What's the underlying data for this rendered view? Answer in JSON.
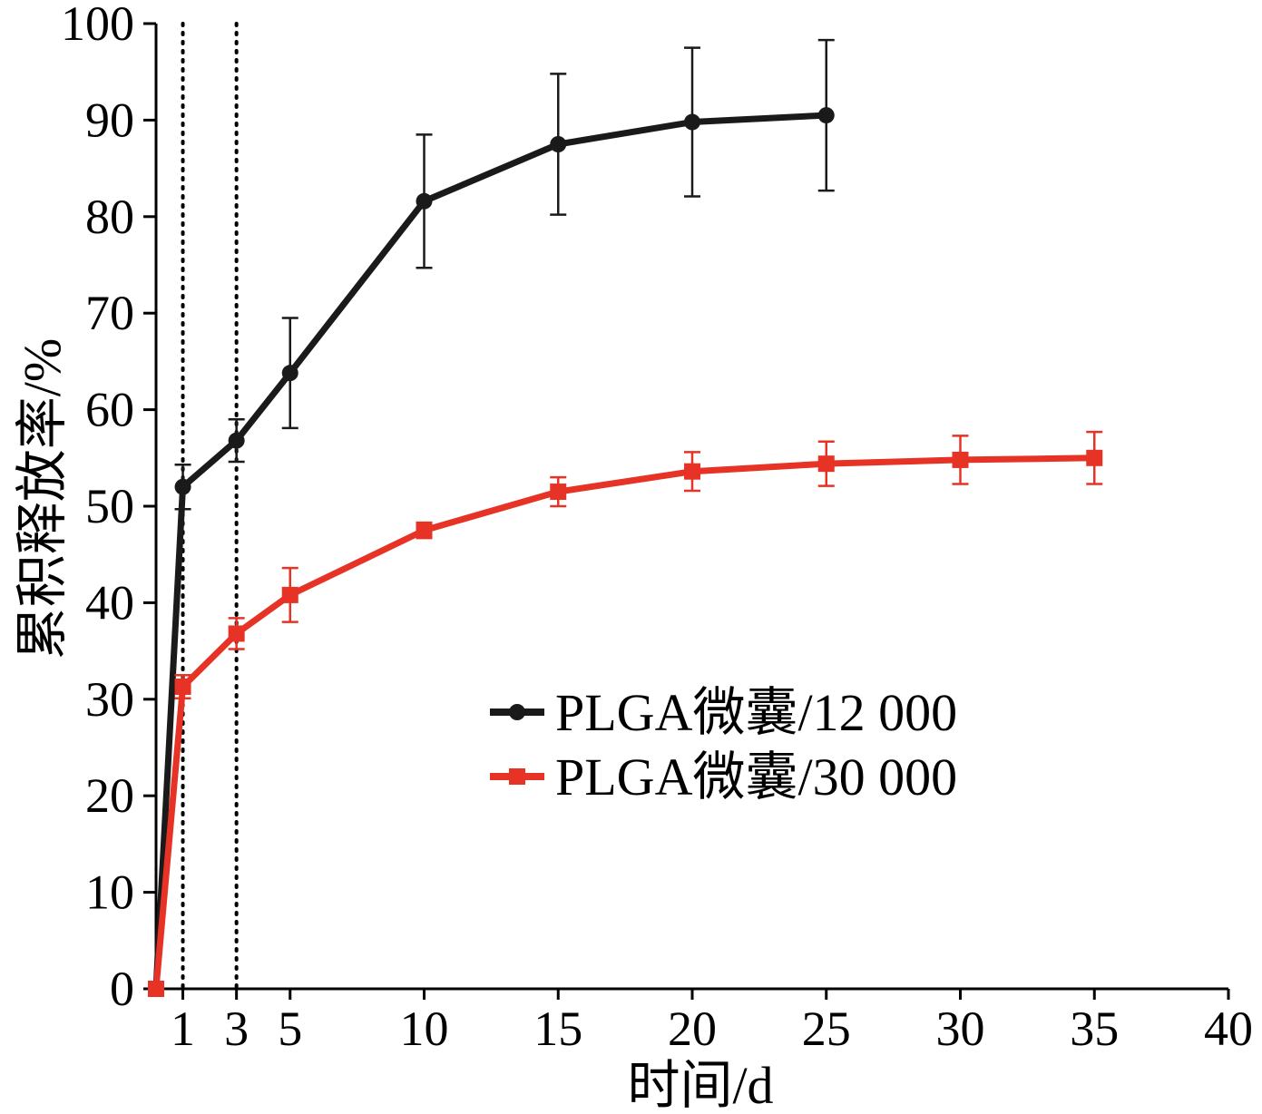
{
  "chart_data": {
    "type": "line",
    "xlabel": "时间/d",
    "ylabel": "累积释放率/%",
    "xlim": [
      0,
      40
    ],
    "ylim": [
      0,
      100
    ],
    "xticks": [
      1,
      3,
      5,
      10,
      15,
      20,
      25,
      30,
      35,
      40
    ],
    "yticks": [
      0,
      10,
      20,
      30,
      40,
      50,
      60,
      70,
      80,
      90,
      100
    ],
    "reference_lines_x": [
      1,
      3
    ],
    "legend_position": "center-right",
    "series": [
      {
        "name": "PLGA微囊/12 000",
        "color": "#1a1a1a",
        "marker": "circle",
        "x": [
          0,
          1,
          3,
          5,
          10,
          15,
          20,
          25
        ],
        "y": [
          0,
          52,
          56.8,
          63.8,
          81.6,
          87.5,
          89.8,
          90.5
        ],
        "err": [
          0,
          2.3,
          2.2,
          5.7,
          6.9,
          7.3,
          7.7,
          7.8
        ]
      },
      {
        "name": "PLGA微囊/30 000",
        "color": "#e63325",
        "marker": "square",
        "x": [
          0,
          1,
          3,
          5,
          10,
          15,
          20,
          25,
          30,
          35
        ],
        "y": [
          0,
          31.3,
          36.8,
          40.8,
          47.5,
          51.5,
          53.6,
          54.4,
          54.8,
          55
        ],
        "err": [
          0,
          1.2,
          1.6,
          2.8,
          0.8,
          1.5,
          2.0,
          2.3,
          2.5,
          2.7
        ]
      }
    ]
  }
}
